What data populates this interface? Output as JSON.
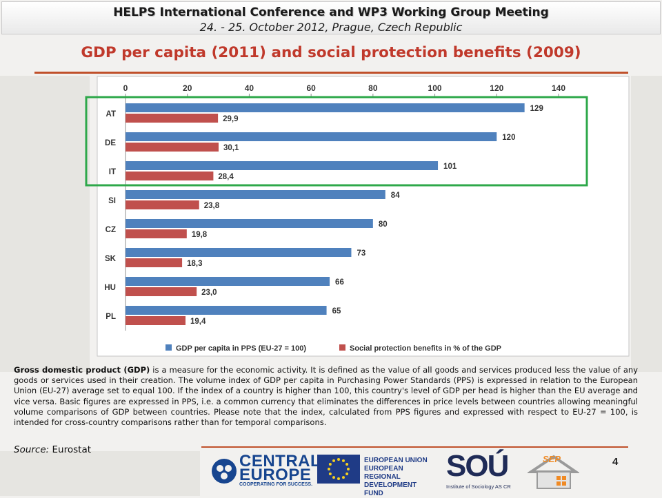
{
  "header": {
    "title": "HELPS International Conference and WP3 Working Group Meeting",
    "subtitle": "24. - 25. October 2012, Prague, Czech Republic"
  },
  "slide_title": "GDP per capita (2011) and social protection benefits (2009)",
  "chart_data": {
    "type": "bar",
    "orientation": "horizontal",
    "categories": [
      "AT",
      "DE",
      "IT",
      "SI",
      "CZ",
      "SK",
      "HU",
      "PL"
    ],
    "series": [
      {
        "name": "GDP per capita in PPS (EU-27 = 100)",
        "values": [
          129,
          120,
          101,
          84,
          80,
          73,
          66,
          65
        ],
        "labels": [
          "129",
          "120",
          "101",
          "84",
          "80",
          "73",
          "66",
          "65"
        ]
      },
      {
        "name": "Social protection benefits in % of the GDP",
        "values": [
          29.9,
          30.1,
          28.4,
          23.8,
          19.8,
          18.3,
          23.0,
          19.4
        ],
        "labels": [
          "29,9",
          "30,1",
          "28,4",
          "23,8",
          "19,8",
          "18,3",
          "23,0",
          "19,4"
        ]
      }
    ],
    "xlim": [
      0,
      140
    ],
    "x_ticks": [
      "0",
      "20",
      "40",
      "60",
      "80",
      "100",
      "120",
      "140"
    ],
    "x_axis_position": "top",
    "legend_position": "bottom",
    "grid": false,
    "highlighted_categories": [
      "AT",
      "DE",
      "IT"
    ],
    "colors": {
      "gdp": "#4f81bd",
      "social": "#c0504d",
      "highlight": "#2ea84a"
    }
  },
  "description": {
    "lead": "Gross domestic product (GDP)",
    "text": " is a measure for the economic activity. It is defined as the value of all goods and services produced less the value of any goods or services used in their creation. The volume index of GDP per capita in Purchasing Power Standards (PPS) is expressed in relation to the European Union (EU-27) average set to equal 100. If the index of a country is higher than 100, this country's level of GDP per head is higher than the EU average and vice versa. Basic figures are expressed in PPS, i.e. a common currency that eliminates the differences in price levels between countries allowing meaningful volume comparisons of GDP between countries. Please note that the index, calculated from PPS figures and expressed with respect to EU-27 = 100, is intended for cross-country comparisons rather than for temporal comparisons."
  },
  "source": {
    "label": "Source:",
    "value": "Eurostat"
  },
  "page_number": "4",
  "logos": {
    "central_europe": {
      "line1": "CENTRAL",
      "line2": "EUROPE",
      "tagline": "COOPERATING FOR SUCCESS."
    },
    "eu": {
      "line1": "EUROPEAN UNION",
      "line2": "EUROPEAN REGIONAL",
      "line3": "DEVELOPMENT FUND"
    },
    "sou": {
      "name": "SOÚ",
      "tagline": "Institute of Sociology AS CR"
    },
    "sep": {
      "name": "SEP"
    }
  }
}
